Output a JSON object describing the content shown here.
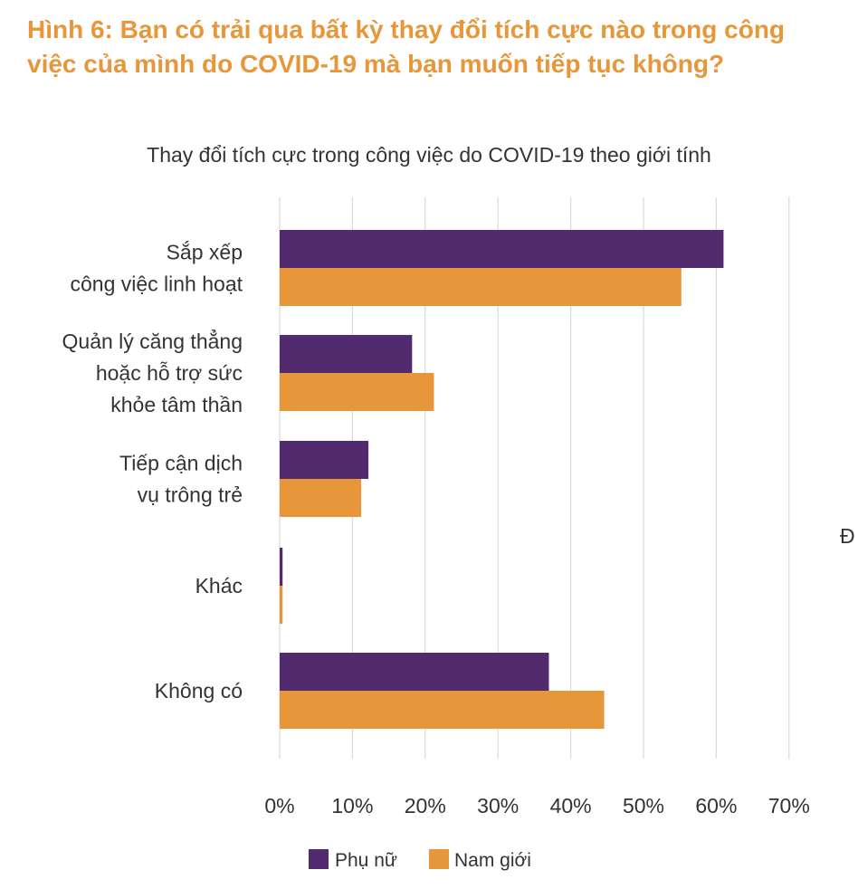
{
  "figure_title": "Hình 6: Bạn có trải qua bất kỳ thay đổi tích cực nào trong công việc của mình do COVID-19 mà bạn muốn tiếp tục không?",
  "cut_text": "Đ",
  "colors": {
    "accent": "#E8963A",
    "female": "#522B6E",
    "male": "#E8963A",
    "grid": "#D9D9D9"
  },
  "chart_data": {
    "type": "bar",
    "orientation": "horizontal",
    "title": "Thay đổi tích cực trong công việc do COVID-19 theo giới tính",
    "categories": [
      [
        "Sắp xếp",
        "công việc linh hoạt"
      ],
      [
        "Quản lý căng thẳng",
        "hoặc hỗ trợ sức",
        "khỏe tâm thần"
      ],
      [
        "Tiếp cận dịch",
        "vụ trông trẻ"
      ],
      [
        "Khác"
      ],
      [
        "Không có"
      ]
    ],
    "series": [
      {
        "name": "Phụ nữ",
        "color": "#522B6E",
        "values": [
          61,
          18.2,
          12.2,
          0.4,
          37
        ]
      },
      {
        "name": "Nam giới",
        "color": "#E8963A",
        "values": [
          55.2,
          21.2,
          11.2,
          0.4,
          44.6
        ]
      }
    ],
    "xlim": [
      0,
      70
    ],
    "xticks": [
      "0%",
      "10%",
      "20%",
      "30%",
      "40%",
      "50%",
      "60%",
      "70%"
    ],
    "xtick_values": [
      0,
      10,
      20,
      30,
      40,
      50,
      60,
      70
    ],
    "grid": true,
    "legend_position": "bottom"
  }
}
